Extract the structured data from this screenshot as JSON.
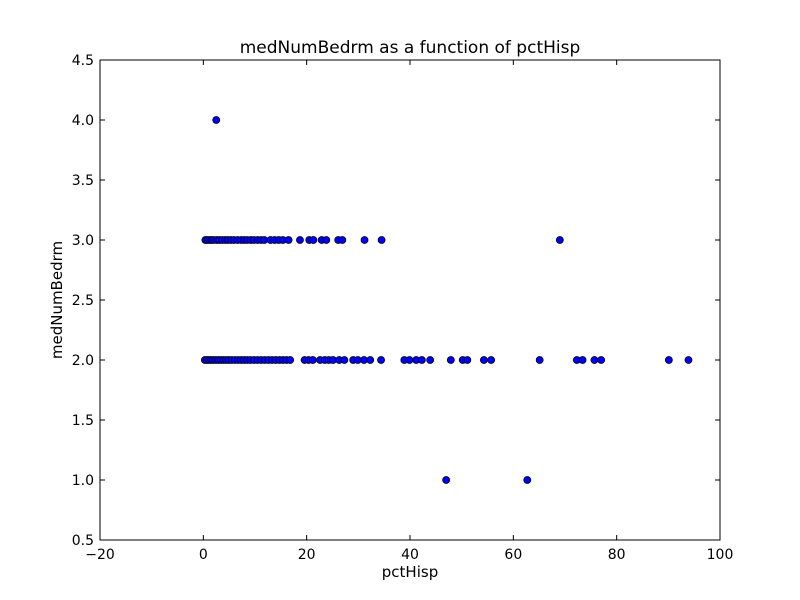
{
  "chart_data": {
    "type": "scatter",
    "title": "medNumBedrm as a function of pctHisp",
    "xlabel": "pctHisp",
    "ylabel": "medNumBedrm",
    "xlim": [
      -20,
      100
    ],
    "ylim": [
      0.5,
      4.5
    ],
    "xticks": [
      -20,
      0,
      20,
      40,
      60,
      80,
      100
    ],
    "xtick_labels": [
      "−20",
      "0",
      "20",
      "40",
      "60",
      "80",
      "100"
    ],
    "yticks": [
      0.5,
      1.0,
      1.5,
      2.0,
      2.5,
      3.0,
      3.5,
      4.0,
      4.5
    ],
    "ytick_labels": [
      "0.5",
      "1.0",
      "1.5",
      "2.0",
      "2.5",
      "3.0",
      "3.5",
      "4.0",
      "4.5"
    ],
    "grid": false,
    "marker_color": "#0000ff",
    "marker_edge_color": "#000000",
    "points": [
      {
        "x": 2.5,
        "y": 4.0
      },
      {
        "x": 0.4,
        "y": 3.0
      },
      {
        "x": 0.8,
        "y": 3.0
      },
      {
        "x": 1.2,
        "y": 3.0
      },
      {
        "x": 1.6,
        "y": 3.0
      },
      {
        "x": 2.0,
        "y": 3.0
      },
      {
        "x": 2.6,
        "y": 3.0
      },
      {
        "x": 3.1,
        "y": 3.0
      },
      {
        "x": 3.6,
        "y": 3.0
      },
      {
        "x": 4.2,
        "y": 3.0
      },
      {
        "x": 4.7,
        "y": 3.0
      },
      {
        "x": 5.3,
        "y": 3.0
      },
      {
        "x": 5.9,
        "y": 3.0
      },
      {
        "x": 6.6,
        "y": 3.0
      },
      {
        "x": 7.3,
        "y": 3.0
      },
      {
        "x": 7.9,
        "y": 3.0
      },
      {
        "x": 8.5,
        "y": 3.0
      },
      {
        "x": 9.2,
        "y": 3.0
      },
      {
        "x": 9.8,
        "y": 3.0
      },
      {
        "x": 10.5,
        "y": 3.0
      },
      {
        "x": 11.2,
        "y": 3.0
      },
      {
        "x": 11.8,
        "y": 3.0
      },
      {
        "x": 13.0,
        "y": 3.0
      },
      {
        "x": 13.8,
        "y": 3.0
      },
      {
        "x": 14.6,
        "y": 3.0
      },
      {
        "x": 15.4,
        "y": 3.0
      },
      {
        "x": 16.5,
        "y": 3.0
      },
      {
        "x": 18.7,
        "y": 3.0
      },
      {
        "x": 20.5,
        "y": 3.0
      },
      {
        "x": 21.3,
        "y": 3.0
      },
      {
        "x": 22.9,
        "y": 3.0
      },
      {
        "x": 23.8,
        "y": 3.0
      },
      {
        "x": 26.1,
        "y": 3.0
      },
      {
        "x": 26.9,
        "y": 3.0
      },
      {
        "x": 31.2,
        "y": 3.0
      },
      {
        "x": 34.5,
        "y": 3.0
      },
      {
        "x": 69.0,
        "y": 3.0
      },
      {
        "x": 0.3,
        "y": 2.0
      },
      {
        "x": 0.7,
        "y": 2.0
      },
      {
        "x": 1.1,
        "y": 2.0
      },
      {
        "x": 1.5,
        "y": 2.0
      },
      {
        "x": 1.9,
        "y": 2.0
      },
      {
        "x": 2.4,
        "y": 2.0
      },
      {
        "x": 2.9,
        "y": 2.0
      },
      {
        "x": 3.4,
        "y": 2.0
      },
      {
        "x": 3.9,
        "y": 2.0
      },
      {
        "x": 4.4,
        "y": 2.0
      },
      {
        "x": 4.9,
        "y": 2.0
      },
      {
        "x": 5.5,
        "y": 2.0
      },
      {
        "x": 6.1,
        "y": 2.0
      },
      {
        "x": 6.7,
        "y": 2.0
      },
      {
        "x": 7.3,
        "y": 2.0
      },
      {
        "x": 7.9,
        "y": 2.0
      },
      {
        "x": 8.5,
        "y": 2.0
      },
      {
        "x": 9.1,
        "y": 2.0
      },
      {
        "x": 9.8,
        "y": 2.0
      },
      {
        "x": 10.5,
        "y": 2.0
      },
      {
        "x": 11.2,
        "y": 2.0
      },
      {
        "x": 11.9,
        "y": 2.0
      },
      {
        "x": 12.6,
        "y": 2.0
      },
      {
        "x": 13.3,
        "y": 2.0
      },
      {
        "x": 14.0,
        "y": 2.0
      },
      {
        "x": 14.7,
        "y": 2.0
      },
      {
        "x": 15.4,
        "y": 2.0
      },
      {
        "x": 16.1,
        "y": 2.0
      },
      {
        "x": 16.8,
        "y": 2.0
      },
      {
        "x": 19.6,
        "y": 2.0
      },
      {
        "x": 20.4,
        "y": 2.0
      },
      {
        "x": 21.2,
        "y": 2.0
      },
      {
        "x": 22.6,
        "y": 2.0
      },
      {
        "x": 23.5,
        "y": 2.0
      },
      {
        "x": 24.3,
        "y": 2.0
      },
      {
        "x": 25.1,
        "y": 2.0
      },
      {
        "x": 26.3,
        "y": 2.0
      },
      {
        "x": 27.3,
        "y": 2.0
      },
      {
        "x": 29.0,
        "y": 2.0
      },
      {
        "x": 29.9,
        "y": 2.0
      },
      {
        "x": 31.1,
        "y": 2.0
      },
      {
        "x": 32.3,
        "y": 2.0
      },
      {
        "x": 34.4,
        "y": 2.0
      },
      {
        "x": 38.9,
        "y": 2.0
      },
      {
        "x": 39.9,
        "y": 2.0
      },
      {
        "x": 41.2,
        "y": 2.0
      },
      {
        "x": 42.3,
        "y": 2.0
      },
      {
        "x": 43.9,
        "y": 2.0
      },
      {
        "x": 47.9,
        "y": 2.0
      },
      {
        "x": 50.2,
        "y": 2.0
      },
      {
        "x": 51.1,
        "y": 2.0
      },
      {
        "x": 54.3,
        "y": 2.0
      },
      {
        "x": 55.7,
        "y": 2.0
      },
      {
        "x": 65.1,
        "y": 2.0
      },
      {
        "x": 72.3,
        "y": 2.0
      },
      {
        "x": 73.4,
        "y": 2.0
      },
      {
        "x": 75.7,
        "y": 2.0
      },
      {
        "x": 77.0,
        "y": 2.0
      },
      {
        "x": 90.1,
        "y": 2.0
      },
      {
        "x": 93.9,
        "y": 2.0
      },
      {
        "x": 47.0,
        "y": 1.0
      },
      {
        "x": 62.7,
        "y": 1.0
      }
    ]
  }
}
